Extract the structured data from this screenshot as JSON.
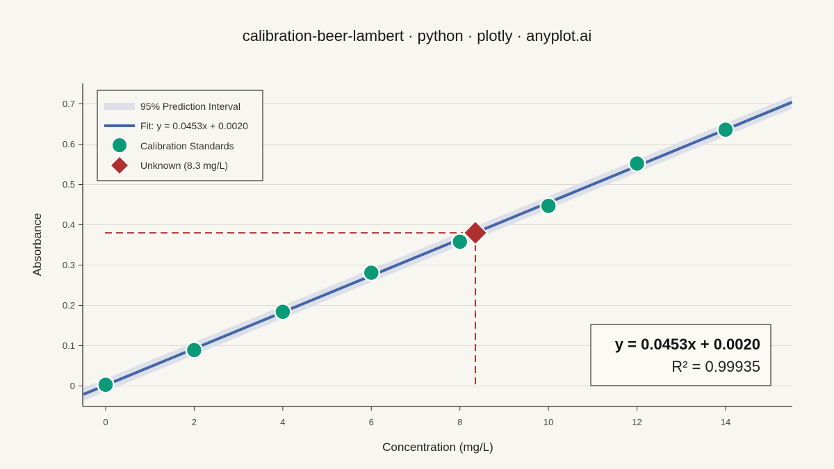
{
  "chart_data": {
    "type": "scatter",
    "title": "calibration-beer-lambert · python · plotly · anyplot.ai",
    "xlabel": "Concentration (mg/L)",
    "ylabel": "Absorbance",
    "xlim": [
      -0.5,
      15.5
    ],
    "ylim": [
      -0.05,
      0.75
    ],
    "x_ticks": [
      0,
      2,
      4,
      6,
      8,
      10,
      12,
      14
    ],
    "y_ticks": [
      0,
      0.1,
      0.2,
      0.3,
      0.4,
      0.5,
      0.6,
      0.7
    ],
    "y_tick_labels": [
      "0",
      "0.1",
      "0.2",
      "0.3",
      "0.4",
      "0.5",
      "0.6",
      "0.7"
    ],
    "grid": "horizontal",
    "legend_position": "top-left",
    "series": [
      {
        "name": "95% Prediction Interval",
        "kind": "band",
        "color": "#dde0e8",
        "halfwidth": 0.016
      },
      {
        "name": "Fit: y = 0.0453x + 0.0020",
        "kind": "line",
        "color": "#4466a8",
        "slope": 0.0453,
        "intercept": 0.002
      },
      {
        "name": "Calibration Standards",
        "kind": "markers",
        "color": "#0a9a78",
        "x": [
          0,
          2,
          4,
          6,
          8,
          10,
          12,
          14
        ],
        "y": [
          0.003,
          0.089,
          0.184,
          0.281,
          0.358,
          0.447,
          0.552,
          0.636
        ]
      },
      {
        "name": "Unknown (8.3 mg/L)",
        "kind": "diamond",
        "color": "#b03030",
        "x": [
          8.35
        ],
        "y": [
          0.38
        ]
      }
    ],
    "annotation": {
      "equation": "y = 0.0453x + 0.0020",
      "r_squared": "R² = 0.99935"
    },
    "tick_label_color": "#444444",
    "grid_color": "#dcdad2",
    "guide_color": "#b03030"
  }
}
